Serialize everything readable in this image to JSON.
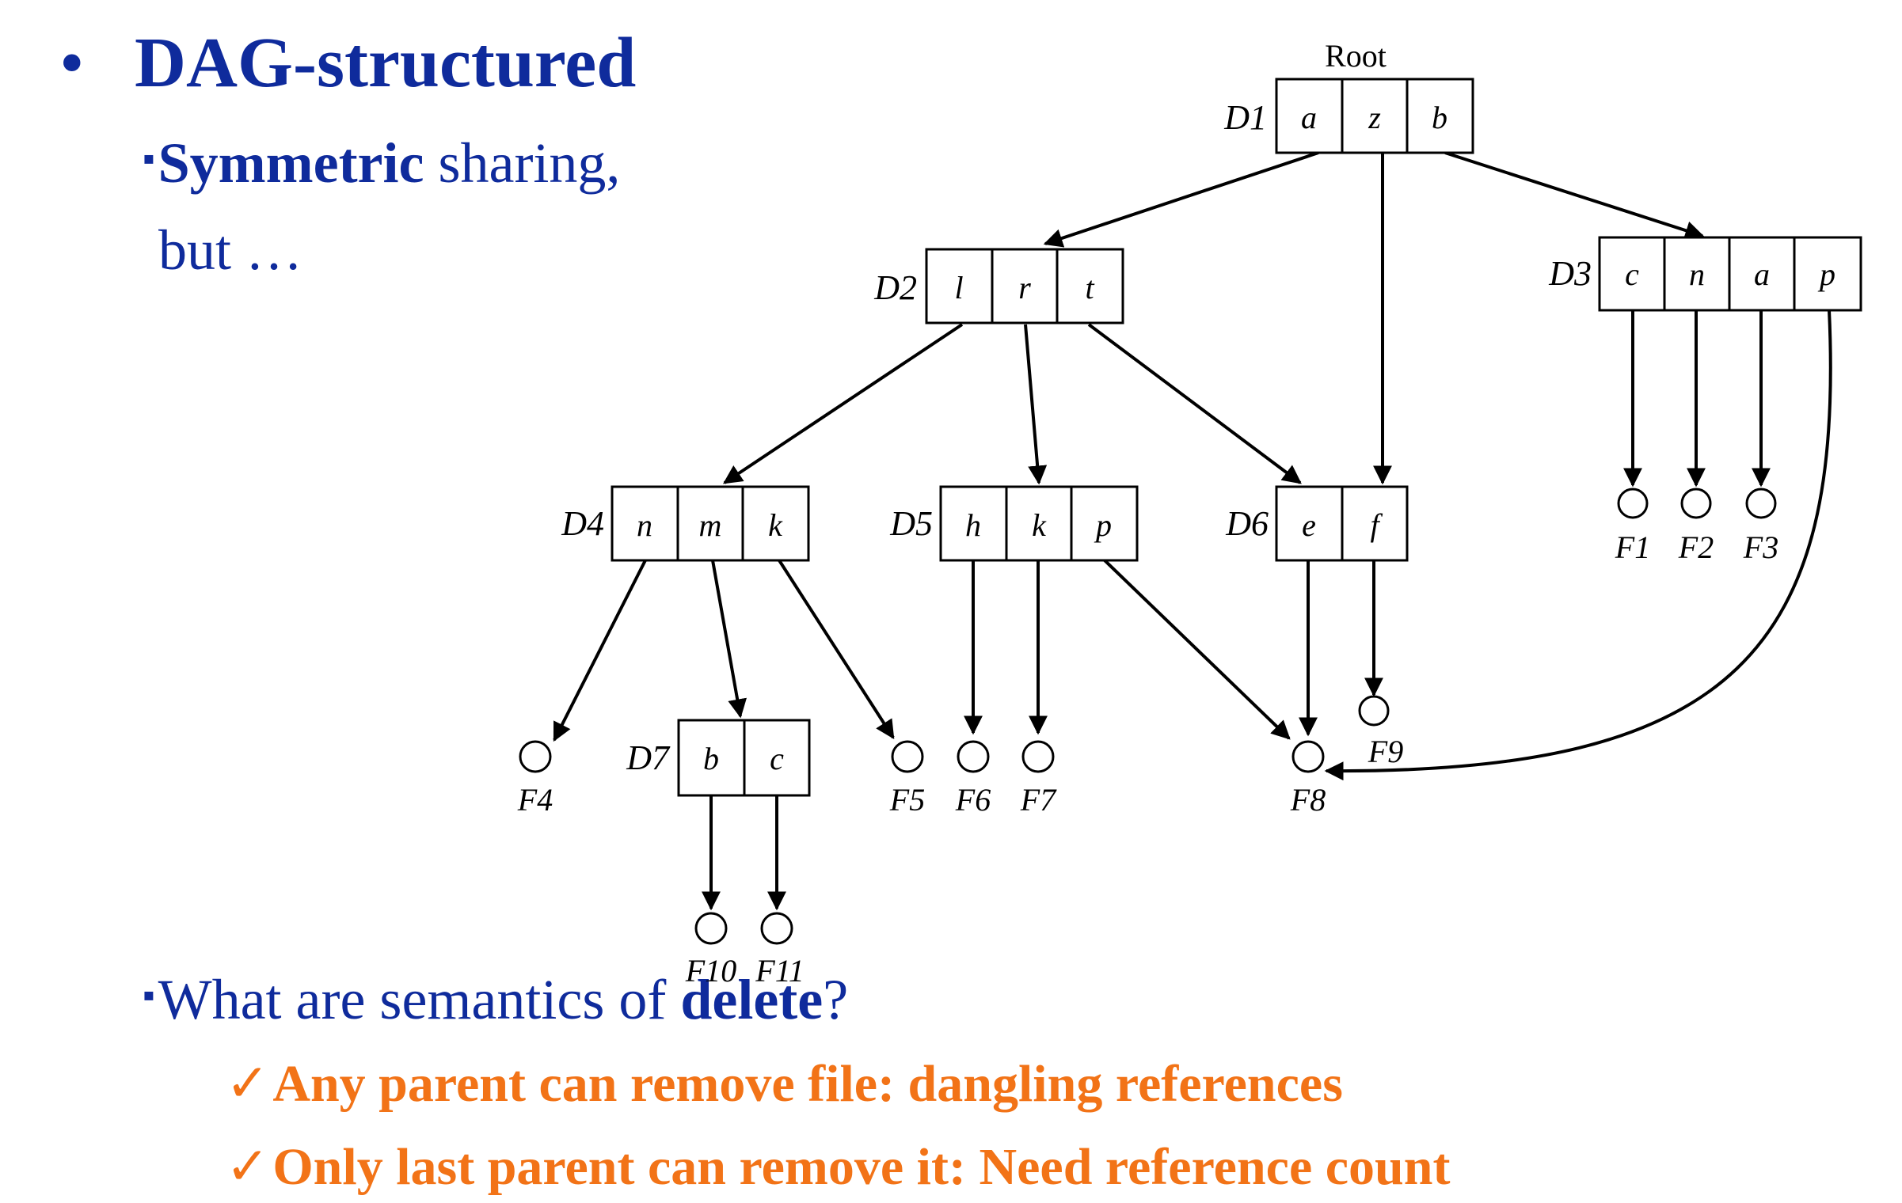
{
  "title": "DAG-structured",
  "title_bullet": "•",
  "point1": {
    "bullet": "▪",
    "bold": "Symmetric",
    "rest": " sharing,",
    "line2": "but …"
  },
  "point2": {
    "bullet": "▪",
    "text1": "What are semantics of ",
    "bold": "delete",
    "text2": "?"
  },
  "checks": [
    {
      "mark": "✓",
      "text": "Any parent can remove file: dangling references"
    },
    {
      "mark": "✓",
      "text": "Only last parent can remove it: Need reference count"
    }
  ],
  "diagram": {
    "root_label": "Root",
    "directories": [
      {
        "name": "D1",
        "entries": [
          "a",
          "z",
          "b"
        ]
      },
      {
        "name": "D2",
        "entries": [
          "l",
          "r",
          "t"
        ]
      },
      {
        "name": "D3",
        "entries": [
          "c",
          "n",
          "a",
          "p"
        ]
      },
      {
        "name": "D4",
        "entries": [
          "n",
          "m",
          "k"
        ]
      },
      {
        "name": "D5",
        "entries": [
          "h",
          "k",
          "p"
        ]
      },
      {
        "name": "D6",
        "entries": [
          "e",
          "f"
        ]
      },
      {
        "name": "D7",
        "entries": [
          "b",
          "c"
        ]
      }
    ],
    "files": [
      "F1",
      "F2",
      "F3",
      "F4",
      "F5",
      "F6",
      "F7",
      "F8",
      "F9",
      "F10",
      "F11"
    ]
  },
  "colors": {
    "title": "#0f2b9c",
    "accent": "#f27317"
  }
}
